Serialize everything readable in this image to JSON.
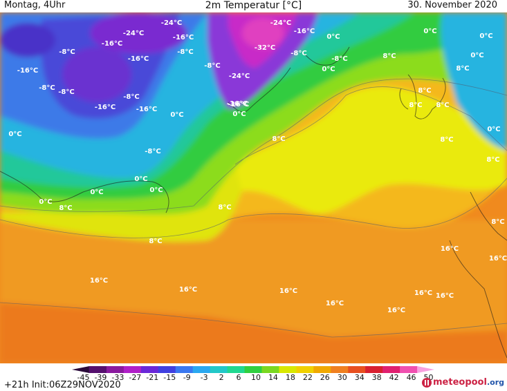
{
  "header": {
    "left": "Montag, 4Uhr",
    "title": "2m Temperatur [°C]",
    "date": "30. November 2020"
  },
  "map": {
    "labels": [
      "-24°C",
      "-24°C",
      "-24°C",
      "-16°C",
      "-16°C",
      "-16°C",
      "-16°C",
      "-16°C",
      "-16°C",
      "-16°C",
      "-16°C",
      "-32°C",
      "-8°C",
      "-8°C",
      "-8°C",
      "-8°C",
      "-8°C",
      "-8°C",
      "-8°C",
      "-8°C",
      "-8°C",
      "-24°C",
      "-16°C",
      "0°C",
      "0°C",
      "0°C",
      "0°C",
      "0°C",
      "0°C",
      "0°C",
      "0°C",
      "0°C",
      "0°C",
      "0°C",
      "0°C",
      "0°C",
      "8°C",
      "8°C",
      "8°C",
      "8°C",
      "8°C",
      "8°C",
      "8°C",
      "8°C",
      "8°C",
      "8°C",
      "8°C",
      "8°C",
      "16°C",
      "16°C",
      "16°C",
      "16°C",
      "16°C",
      "16°C",
      "16°C",
      "16°C",
      "16°C"
    ]
  },
  "footer": {
    "run": "+21h",
    "init": "Init:06Z29NOV2020",
    "scale": [
      "-45",
      "-39",
      "-33",
      "-27",
      "-21",
      "-15",
      "-9",
      "-3",
      "2",
      "6",
      "10",
      "14",
      "18",
      "22",
      "26",
      "30",
      "34",
      "38",
      "42",
      "46",
      "50"
    ],
    "scale_colors": [
      "#2a0a3a",
      "#55106e",
      "#8a1a9e",
      "#b020c8",
      "#6a28d8",
      "#4040e0",
      "#3a78f0",
      "#2aa8f0",
      "#22c8c8",
      "#20d890",
      "#30d040",
      "#7ad820",
      "#d8e800",
      "#f0d000",
      "#f0a800",
      "#f08020",
      "#e85020",
      "#d82030",
      "#e02070",
      "#f050b0",
      "#f8a0e0"
    ],
    "logo_a": "meteopool",
    "logo_b": ".org"
  }
}
